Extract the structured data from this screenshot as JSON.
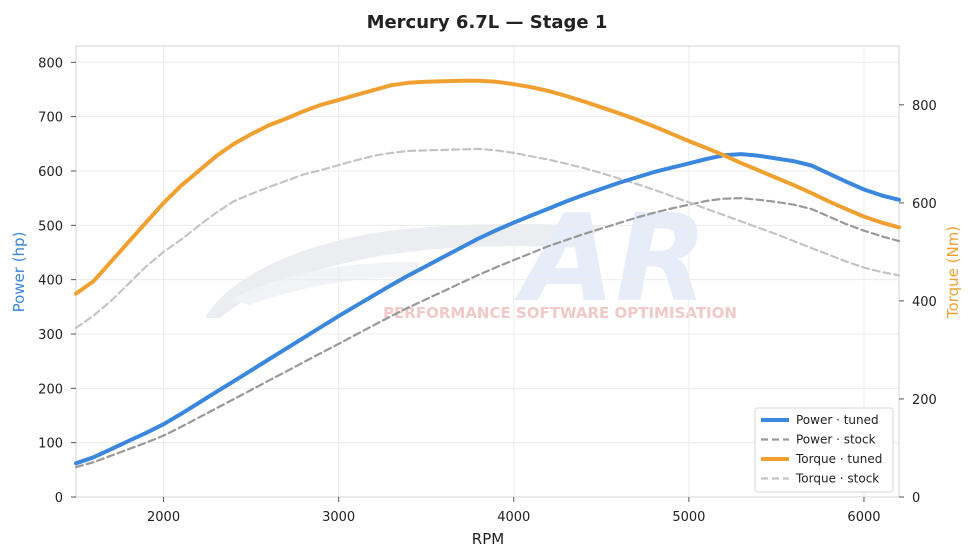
{
  "chart_data": {
    "type": "line",
    "title": "Mercury 6.7L — Stage 1",
    "xlabel": "RPM",
    "ylabel": "Power (hp)",
    "y2label": "Torque (Nm)",
    "xlim": [
      1500,
      6200
    ],
    "ylim": [
      0,
      830
    ],
    "y2lim": [
      0,
      920
    ],
    "xticks": [
      2000,
      3000,
      4000,
      5000,
      6000
    ],
    "yticks": [
      0,
      100,
      200,
      300,
      400,
      500,
      600,
      700,
      800
    ],
    "y2ticks": [
      0,
      200,
      400,
      600,
      800
    ],
    "grid": true,
    "legend_position": "bottom-right",
    "x": [
      1500,
      1600,
      1700,
      1800,
      1900,
      2000,
      2100,
      2200,
      2300,
      2400,
      2500,
      2600,
      2700,
      2800,
      2900,
      3000,
      3100,
      3200,
      3300,
      3400,
      3500,
      3600,
      3700,
      3800,
      3900,
      4000,
      4100,
      4200,
      4300,
      4400,
      4500,
      4600,
      4700,
      4800,
      4900,
      5000,
      5100,
      5200,
      5300,
      5400,
      5500,
      5600,
      5700,
      5800,
      5900,
      6000,
      6100,
      6200
    ],
    "series": [
      {
        "name": "Power · tuned",
        "axis": "left",
        "color": "#3a87dd",
        "style": "solid",
        "values": [
          62,
          73,
          88,
          103,
          118,
          134,
          153,
          173,
          193,
          213,
          233,
          253,
          273,
          293,
          313,
          333,
          352,
          371,
          390,
          408,
          425,
          442,
          459,
          476,
          491,
          505,
          518,
          531,
          544,
          556,
          567,
          578,
          588,
          598,
          606,
          614,
          622,
          629,
          631,
          628,
          623,
          618,
          610,
          595,
          580,
          566,
          555,
          547
        ]
      },
      {
        "name": "Power · stock",
        "axis": "left",
        "color": "#999999",
        "style": "dashed",
        "values": [
          55,
          64,
          76,
          88,
          100,
          113,
          129,
          146,
          163,
          180,
          197,
          214,
          231,
          248,
          265,
          282,
          299,
          316,
          333,
          349,
          364,
          379,
          394,
          409,
          423,
          436,
          449,
          462,
          473,
          484,
          494,
          504,
          514,
          523,
          531,
          538,
          545,
          549,
          550,
          547,
          543,
          538,
          530,
          516,
          502,
          490,
          480,
          471
        ]
      },
      {
        "name": "Torque · tuned",
        "axis": "right",
        "color": "#f0a030",
        "style": "solid",
        "values": [
          415,
          440,
          480,
          520,
          560,
          600,
          635,
          665,
          695,
          720,
          740,
          758,
          772,
          787,
          800,
          810,
          820,
          830,
          840,
          845,
          847,
          848,
          849,
          849,
          847,
          842,
          836,
          828,
          818,
          807,
          795,
          783,
          770,
          756,
          741,
          726,
          712,
          697,
          681,
          666,
          651,
          636,
          620,
          603,
          587,
          572,
          560,
          550
        ]
      },
      {
        "name": "Torque · stock",
        "axis": "right",
        "color": "#c4c4c4",
        "style": "dashed",
        "values": [
          345,
          370,
          400,
          435,
          470,
          500,
          525,
          553,
          580,
          603,
          618,
          632,
          645,
          658,
          667,
          677,
          687,
          696,
          702,
          706,
          707,
          708,
          709,
          710,
          707,
          702,
          695,
          688,
          680,
          671,
          661,
          650,
          639,
          627,
          614,
          601,
          588,
          575,
          562,
          549,
          536,
          522,
          508,
          494,
          480,
          468,
          459,
          452
        ]
      }
    ]
  },
  "watermark": {
    "letters": "AR",
    "tagline": "PERFORMANCE SOFTWARE OPTIMISATION"
  },
  "colors": {
    "power_axis": "#3a87dd",
    "torque_axis": "#f0a030",
    "grid": "#ececec"
  }
}
